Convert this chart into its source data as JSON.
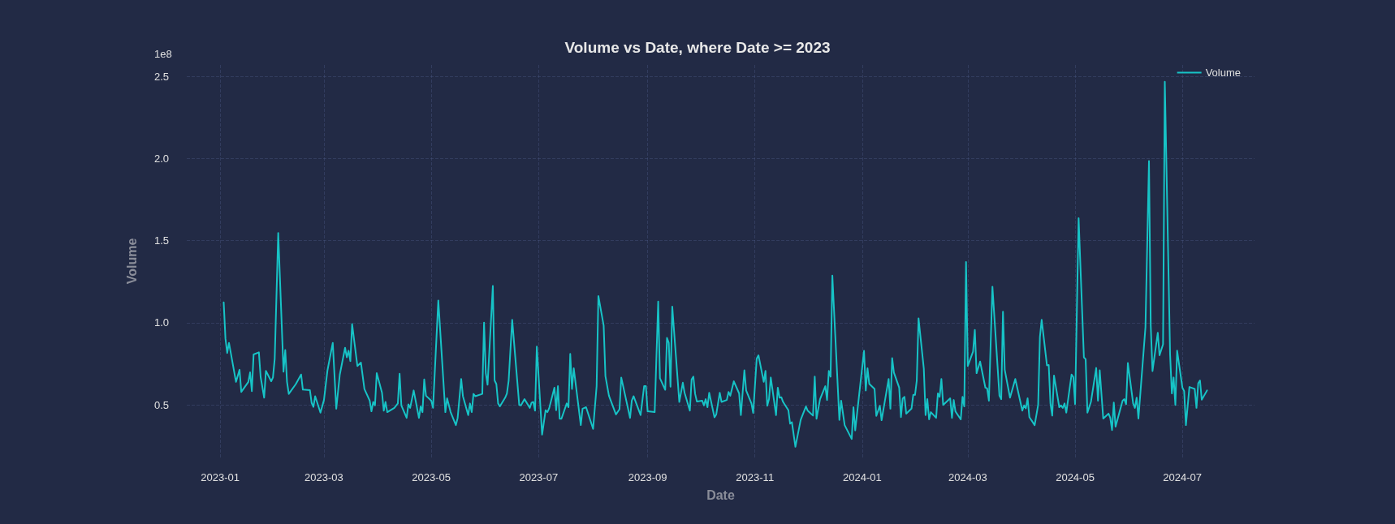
{
  "chart_data": {
    "type": "line",
    "title": "Volume vs Date, where Date >= 2023",
    "xlabel": "Date",
    "ylabel": "Volume",
    "annotations": [
      "1e8"
    ],
    "x": [
      "2023-01-03",
      "2023-01-04",
      "2023-01-05",
      "2023-01-06",
      "2023-01-10",
      "2023-01-12",
      "2023-01-13",
      "2023-01-17",
      "2023-01-18",
      "2023-01-19",
      "2023-01-20",
      "2023-01-23",
      "2023-01-24",
      "2023-01-26",
      "2023-01-27",
      "2023-01-30",
      "2023-01-31",
      "2023-02-01",
      "2023-02-03",
      "2023-02-06",
      "2023-02-07",
      "2023-02-08",
      "2023-02-09",
      "2023-02-13",
      "2023-02-16",
      "2023-02-17",
      "2023-02-21",
      "2023-02-22",
      "2023-02-23",
      "2023-02-24",
      "2023-02-27",
      "2023-03-01",
      "2023-03-03",
      "2023-03-06",
      "2023-03-08",
      "2023-03-10",
      "2023-03-13",
      "2023-03-14",
      "2023-03-15",
      "2023-03-16",
      "2023-03-17",
      "2023-03-20",
      "2023-03-22",
      "2023-03-24",
      "2023-03-27",
      "2023-03-28",
      "2023-03-29",
      "2023-03-30",
      "2023-03-31",
      "2023-04-03",
      "2023-04-04",
      "2023-04-05",
      "2023-04-06",
      "2023-04-10",
      "2023-04-12",
      "2023-04-13",
      "2023-04-14",
      "2023-04-17",
      "2023-04-18",
      "2023-04-19",
      "2023-04-21",
      "2023-04-24",
      "2023-04-25",
      "2023-04-26",
      "2023-04-27",
      "2023-04-28",
      "2023-05-01",
      "2023-05-02",
      "2023-05-05",
      "2023-05-09",
      "2023-05-10",
      "2023-05-12",
      "2023-05-15",
      "2023-05-16",
      "2023-05-18",
      "2023-05-19",
      "2023-05-22",
      "2023-05-23",
      "2023-05-24",
      "2023-05-25",
      "2023-05-26",
      "2023-05-30",
      "2023-05-31",
      "2023-06-01",
      "2023-06-02",
      "2023-06-05",
      "2023-06-06",
      "2023-06-07",
      "2023-06-08",
      "2023-06-09",
      "2023-06-12",
      "2023-06-13",
      "2023-06-14",
      "2023-06-16",
      "2023-06-20",
      "2023-06-21",
      "2023-06-23",
      "2023-06-26",
      "2023-06-27",
      "2023-06-28",
      "2023-06-29",
      "2023-06-30",
      "2023-07-03",
      "2023-07-05",
      "2023-07-06",
      "2023-07-07",
      "2023-07-10",
      "2023-07-11",
      "2023-07-12",
      "2023-07-13",
      "2023-07-14",
      "2023-07-17",
      "2023-07-18",
      "2023-07-19",
      "2023-07-20",
      "2023-07-21",
      "2023-07-25",
      "2023-07-26",
      "2023-07-28",
      "2023-08-01",
      "2023-08-03",
      "2023-08-04",
      "2023-08-07",
      "2023-08-08",
      "2023-08-10",
      "2023-08-14",
      "2023-08-16",
      "2023-08-17",
      "2023-08-22",
      "2023-08-23",
      "2023-08-24",
      "2023-08-28",
      "2023-08-30",
      "2023-08-31",
      "2023-09-01",
      "2023-09-05",
      "2023-09-07",
      "2023-09-08",
      "2023-09-11",
      "2023-09-12",
      "2023-09-13",
      "2023-09-14",
      "2023-09-15",
      "2023-09-19",
      "2023-09-21",
      "2023-09-22",
      "2023-09-25",
      "2023-09-26",
      "2023-09-27",
      "2023-09-28",
      "2023-09-29",
      "2023-10-02",
      "2023-10-03",
      "2023-10-04",
      "2023-10-05",
      "2023-10-06",
      "2023-10-09",
      "2023-10-10",
      "2023-10-12",
      "2023-10-13",
      "2023-10-16",
      "2023-10-17",
      "2023-10-18",
      "2023-10-20",
      "2023-10-23",
      "2023-10-24",
      "2023-10-26",
      "2023-10-27",
      "2023-10-30",
      "2023-10-31",
      "2023-11-02",
      "2023-11-03",
      "2023-11-06",
      "2023-11-07",
      "2023-11-08",
      "2023-11-09",
      "2023-11-10",
      "2023-11-13",
      "2023-11-14",
      "2023-11-15",
      "2023-11-16",
      "2023-11-17",
      "2023-11-20",
      "2023-11-21",
      "2023-11-22",
      "2023-11-24",
      "2023-11-27",
      "2023-11-30",
      "2023-12-01",
      "2023-12-04",
      "2023-12-05",
      "2023-12-06",
      "2023-12-08",
      "2023-12-11",
      "2023-12-12",
      "2023-12-13",
      "2023-12-14",
      "2023-12-15",
      "2023-12-19",
      "2023-12-20",
      "2023-12-22",
      "2023-12-26",
      "2023-12-27",
      "2023-12-28",
      "2024-01-02",
      "2024-01-03",
      "2024-01-04",
      "2024-01-05",
      "2024-01-08",
      "2024-01-09",
      "2024-01-11",
      "2024-01-12",
      "2024-01-16",
      "2024-01-17",
      "2024-01-18",
      "2024-01-19",
      "2024-01-22",
      "2024-01-23",
      "2024-01-24",
      "2024-01-25",
      "2024-01-26",
      "2024-01-29",
      "2024-01-30",
      "2024-01-31",
      "2024-02-01",
      "2024-02-02",
      "2024-02-05",
      "2024-02-06",
      "2024-02-07",
      "2024-02-08",
      "2024-02-09",
      "2024-02-12",
      "2024-02-13",
      "2024-02-14",
      "2024-02-15",
      "2024-02-16",
      "2024-02-20",
      "2024-02-21",
      "2024-02-22",
      "2024-02-23",
      "2024-02-26",
      "2024-02-27",
      "2024-02-28",
      "2024-02-29",
      "2024-03-01",
      "2024-03-04",
      "2024-03-05",
      "2024-03-06",
      "2024-03-08",
      "2024-03-11",
      "2024-03-12",
      "2024-03-13",
      "2024-03-15",
      "2024-03-19",
      "2024-03-20",
      "2024-03-21",
      "2024-03-22",
      "2024-03-25",
      "2024-03-28",
      "2024-04-01",
      "2024-04-02",
      "2024-04-03",
      "2024-04-04",
      "2024-04-05",
      "2024-04-08",
      "2024-04-10",
      "2024-04-11",
      "2024-04-12",
      "2024-04-15",
      "2024-04-16",
      "2024-04-17",
      "2024-04-18",
      "2024-04-19",
      "2024-04-22",
      "2024-04-23",
      "2024-04-24",
      "2024-04-25",
      "2024-04-26",
      "2024-04-29",
      "2024-04-30",
      "2024-05-01",
      "2024-05-03",
      "2024-05-06",
      "2024-05-07",
      "2024-05-08",
      "2024-05-10",
      "2024-05-13",
      "2024-05-14",
      "2024-05-15",
      "2024-05-17",
      "2024-05-20",
      "2024-05-21",
      "2024-05-22",
      "2024-05-23",
      "2024-05-24",
      "2024-05-28",
      "2024-05-29",
      "2024-05-30",
      "2024-05-31",
      "2024-06-03",
      "2024-06-04",
      "2024-06-05",
      "2024-06-06",
      "2024-06-10",
      "2024-06-12",
      "2024-06-13",
      "2024-06-14",
      "2024-06-17",
      "2024-06-18",
      "2024-06-20",
      "2024-06-21",
      "2024-06-24",
      "2024-06-25",
      "2024-06-26",
      "2024-06-27",
      "2024-06-28",
      "2024-07-01",
      "2024-07-02",
      "2024-07-03",
      "2024-07-05",
      "2024-07-08",
      "2024-07-09",
      "2024-07-10",
      "2024-07-11",
      "2024-07-12",
      "2024-07-15"
    ],
    "series": [
      {
        "name": "Volume",
        "color": "#17c3c6",
        "values": [
          1.124,
          0.904,
          0.816,
          0.878,
          0.64,
          0.714,
          0.579,
          0.64,
          0.698,
          0.584,
          0.807,
          0.82,
          0.67,
          0.544,
          0.707,
          0.644,
          0.667,
          0.781,
          1.546,
          0.702,
          0.834,
          0.64,
          0.567,
          0.627,
          0.685,
          0.593,
          0.59,
          0.512,
          0.488,
          0.553,
          0.453,
          0.53,
          0.711,
          0.878,
          0.477,
          0.685,
          0.848,
          0.79,
          0.83,
          0.767,
          0.992,
          0.737,
          0.758,
          0.597,
          0.526,
          0.461,
          0.518,
          0.497,
          0.693,
          0.574,
          0.465,
          0.518,
          0.456,
          0.482,
          0.509,
          0.69,
          0.497,
          0.421,
          0.504,
          0.482,
          0.588,
          0.421,
          0.491,
          0.456,
          0.655,
          0.556,
          0.526,
          0.482,
          1.136,
          0.456,
          0.54,
          0.456,
          0.377,
          0.421,
          0.658,
          0.553,
          0.438,
          0.509,
          0.456,
          0.567,
          0.553,
          0.567,
          1.001,
          0.693,
          0.623,
          1.224,
          0.649,
          0.627,
          0.509,
          0.491,
          0.544,
          0.57,
          0.649,
          1.018,
          0.5,
          0.497,
          0.535,
          0.482,
          0.514,
          0.518,
          0.465,
          0.855,
          0.319,
          0.468,
          0.456,
          0.479,
          0.605,
          0.468,
          0.614,
          0.416,
          0.416,
          0.509,
          0.486,
          0.811,
          0.597,
          0.723,
          0.377,
          0.477,
          0.486,
          0.354,
          0.614,
          1.163,
          0.983,
          0.676,
          0.556,
          0.442,
          0.474,
          0.667,
          0.421,
          0.526,
          0.553,
          0.438,
          0.614,
          0.614,
          0.461,
          0.456,
          1.129,
          0.662,
          0.592,
          0.908,
          0.878,
          0.611,
          1.098,
          0.518,
          0.635,
          0.574,
          0.465,
          0.655,
          0.672,
          0.567,
          0.521,
          0.526,
          0.497,
          0.535,
          0.486,
          0.574,
          0.424,
          0.442,
          0.574,
          0.518,
          0.53,
          0.579,
          0.556,
          0.644,
          0.57,
          0.438,
          0.711,
          0.588,
          0.509,
          0.451,
          0.781,
          0.802,
          0.64,
          0.707,
          0.495,
          0.535,
          0.667,
          0.438,
          0.605,
          0.544,
          0.547,
          0.518,
          0.468,
          0.386,
          0.395,
          0.245,
          0.409,
          0.491,
          0.465,
          0.435,
          0.672,
          0.416,
          0.535,
          0.614,
          0.53,
          0.707,
          0.672,
          1.287,
          0.409,
          0.526,
          0.377,
          0.293,
          0.486,
          0.345,
          0.829,
          0.588,
          0.723,
          0.628,
          0.597,
          0.433,
          0.495,
          0.407,
          0.658,
          0.477,
          0.785,
          0.697,
          0.605,
          0.426,
          0.539,
          0.549,
          0.447,
          0.477,
          0.561,
          0.561,
          0.649,
          1.027,
          0.72,
          0.438,
          0.535,
          0.412,
          0.456,
          0.421,
          0.57,
          0.549,
          0.658,
          0.5,
          0.54,
          0.421,
          0.53,
          0.46,
          0.412,
          0.549,
          0.491,
          1.37,
          0.737,
          0.825,
          0.957,
          0.693,
          0.764,
          0.605,
          0.6,
          0.526,
          1.22,
          0.556,
          0.535,
          1.068,
          0.714,
          0.544,
          0.658,
          0.465,
          0.497,
          0.479,
          0.54,
          0.426,
          0.377,
          0.5,
          0.913,
          1.018,
          0.741,
          0.743,
          0.509,
          0.435,
          0.679,
          0.486,
          0.497,
          0.482,
          0.509,
          0.453,
          0.685,
          0.67,
          0.505,
          1.637,
          0.79,
          0.778,
          0.453,
          0.518,
          0.725,
          0.526,
          0.711,
          0.417,
          0.447,
          0.421,
          0.347,
          0.514,
          0.368,
          0.526,
          0.535,
          0.504,
          0.755,
          0.509,
          0.482,
          0.544,
          0.417,
          0.974,
          1.985,
          0.983,
          0.706,
          0.939,
          0.802,
          0.869,
          2.468,
          0.808,
          0.57,
          0.667,
          0.5,
          0.83,
          0.605,
          0.584,
          0.377,
          0.609,
          0.597,
          0.482,
          0.632,
          0.649,
          0.532,
          0.588
        ]
      }
    ],
    "xlim": [
      "2022-12-13",
      "2024-08-11"
    ],
    "xticks": [
      {
        "value": "2023-01",
        "label": "2023-01"
      },
      {
        "value": "2023-03",
        "label": "2023-03"
      },
      {
        "value": "2023-05",
        "label": "2023-05"
      },
      {
        "value": "2023-07",
        "label": "2023-07"
      },
      {
        "value": "2023-09",
        "label": "2023-09"
      },
      {
        "value": "2023-11",
        "label": "2023-11"
      },
      {
        "value": "2024-01",
        "label": "2024-01"
      },
      {
        "value": "2024-03",
        "label": "2024-03"
      },
      {
        "value": "2024-05",
        "label": "2024-05"
      },
      {
        "value": "2024-07",
        "label": "2024-07"
      }
    ],
    "ylim": [
      0.18,
      2.57
    ],
    "yticks": [
      0.5,
      {
        "value": 1,
        "label": "1.0"
      },
      1.5,
      {
        "value": 2,
        "label": "2.0"
      },
      2.5
    ],
    "grid": true,
    "legend": "top right",
    "marker": "none",
    "line_style": "solid"
  }
}
